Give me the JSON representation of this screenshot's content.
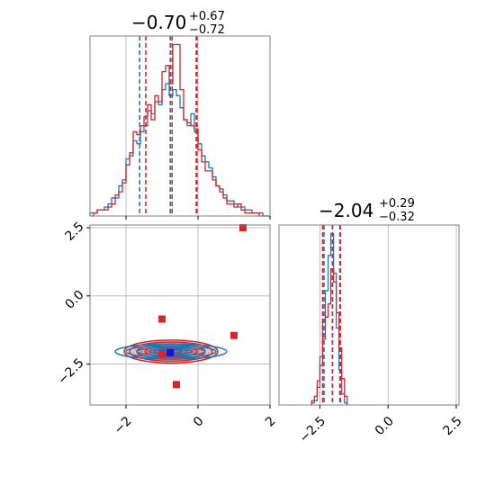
{
  "chart_data": {
    "type": "corner",
    "parameters": 2,
    "colors": {
      "blue": "#1f77b4",
      "red": "#d62728",
      "grid": "#b0b0b0"
    },
    "titles": [
      {
        "main": "−0.70",
        "plus": "+0.67",
        "minus": "−0.72"
      },
      {
        "main": "−2.04",
        "plus": "+0.29",
        "minus": "−0.32"
      }
    ],
    "axes": {
      "x0_range": [
        -3,
        2
      ],
      "x1_range": [
        -4,
        2.6
      ],
      "x0_ticks": [
        {
          "v": -2,
          "label": "−2"
        },
        {
          "v": 0,
          "label": "0"
        },
        {
          "v": 2,
          "label": "2"
        }
      ],
      "x1_ticks": [
        {
          "v": -2.5,
          "label": "−2.5"
        },
        {
          "v": 0,
          "label": "0.0"
        },
        {
          "v": 2.5,
          "label": "2.5"
        }
      ]
    },
    "hist1d_x0": {
      "bin_start": -3,
      "bin_width": 0.1,
      "blue": [
        1,
        1,
        2,
        2,
        3,
        4,
        6,
        6,
        10,
        12,
        19,
        20,
        25,
        24,
        28,
        30,
        35,
        34,
        38,
        37,
        42,
        44,
        40,
        42,
        40,
        36,
        32,
        30,
        34,
        28,
        24,
        20,
        18,
        16,
        13,
        10,
        9,
        7,
        5,
        5,
        4,
        3,
        3,
        2,
        2,
        1,
        1,
        1,
        0,
        0
      ],
      "red": [
        0,
        1,
        2,
        2,
        2,
        3,
        4,
        7,
        8,
        11,
        17,
        21,
        28,
        27,
        30,
        33,
        37,
        32,
        40,
        38,
        48,
        50,
        44,
        57,
        57,
        42,
        32,
        31,
        30,
        29,
        22,
        18,
        15,
        15,
        12,
        10,
        8,
        6,
        4,
        4,
        3,
        4,
        2,
        1,
        1,
        1,
        1,
        0,
        0,
        0
      ],
      "blue_quantiles": [
        -1.62,
        -0.77,
        -0.05
      ],
      "red_quantiles": [
        -1.45,
        -0.72,
        -0.03
      ]
    },
    "hist1d_x1": {
      "bin_start": -2.8,
      "bin_width": 0.1,
      "blue": [
        1,
        2,
        8,
        22,
        38,
        52,
        68,
        78,
        60,
        35,
        16,
        5,
        1
      ],
      "red": [
        2,
        4,
        11,
        18,
        30,
        40,
        46,
        62,
        56,
        42,
        26,
        12,
        4
      ],
      "blue_quantiles": [
        -2.35,
        -2.04,
        -1.77
      ],
      "red_quantiles": [
        -2.4,
        -2.04,
        -1.75
      ]
    },
    "markers": {
      "red": [
        [
          -1.0,
          -0.85
        ],
        [
          1.0,
          -1.45
        ],
        [
          -1.0,
          -2.12
        ],
        [
          -0.6,
          -3.25
        ],
        [
          1.25,
          2.5
        ]
      ],
      "blue": [
        [
          -0.77,
          -2.08
        ]
      ]
    },
    "contours": {
      "center": [
        -0.75,
        -2.04
      ],
      "red_levels": [
        [
          1.3,
          0.42
        ],
        [
          1.15,
          0.35
        ],
        [
          0.95,
          0.28
        ],
        [
          0.72,
          0.2
        ],
        [
          0.45,
          0.13
        ]
      ],
      "blue_levels": [
        [
          1.55,
          0.28
        ],
        [
          1.25,
          0.22
        ],
        [
          0.95,
          0.15
        ],
        [
          0.6,
          0.09
        ],
        [
          0.3,
          0.05
        ]
      ]
    },
    "grid": true,
    "legend": false
  }
}
